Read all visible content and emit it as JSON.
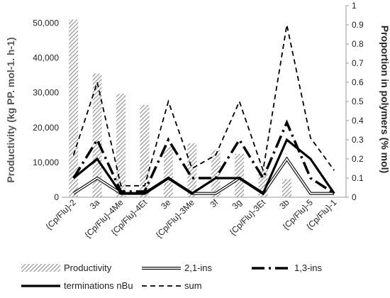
{
  "chart_data": {
    "type": "bar",
    "categories": [
      "{Cp/Flu}-2",
      "3a",
      "{Cp/Flu}-4Me",
      "{Cp/Flu}-4Et",
      "3e",
      "{Cp/Flu}-3Me",
      "3f",
      "3g",
      "{Cp/Flu}-3Et",
      "3b",
      "{Cp/Flu}-5",
      "{Cp/Flu}-1"
    ],
    "y_left": {
      "label": "Productivity (kg PP. mol-1. h-1)",
      "ylim": [
        0,
        55000
      ],
      "ticks": [
        "0",
        "10,000",
        "20,000",
        "30,000",
        "40,000",
        "50,000"
      ]
    },
    "y_right": {
      "label": "Proportion in polymers (% mol)",
      "ylim": [
        0,
        1
      ],
      "ticks": [
        "0",
        "0.1",
        "0.2",
        "0.3",
        "0.4",
        "0.5",
        "0.6",
        "0.7",
        "0.8",
        "0.9",
        "1"
      ]
    },
    "series": [
      {
        "name": "Productivity",
        "kind": "bar",
        "axis": "left",
        "values": [
          51000,
          35500,
          29700,
          26500,
          14500,
          15500,
          13500,
          12500,
          8000,
          5200,
          0,
          0
        ]
      },
      {
        "name": "2,1-ins",
        "kind": "line",
        "axis": "right",
        "values": [
          0.02,
          0.1,
          0.02,
          0.02,
          0.1,
          0.02,
          0.02,
          0.1,
          0.02,
          0.2,
          0.02,
          0.02
        ]
      },
      {
        "name": "1,3-ins",
        "kind": "line",
        "axis": "right",
        "values": [
          0.1,
          0.3,
          0.03,
          0.03,
          0.3,
          0.1,
          0.1,
          0.3,
          0.1,
          0.39,
          0.1,
          0.02
        ]
      },
      {
        "name": "terminations nBu",
        "kind": "line",
        "axis": "right",
        "values": [
          0.1,
          0.2,
          0.02,
          0.02,
          0.1,
          0.02,
          0.1,
          0.1,
          0.02,
          0.3,
          0.2,
          0.02
        ]
      },
      {
        "name": "sum",
        "kind": "line",
        "axis": "right",
        "values": [
          0.22,
          0.6,
          0.06,
          0.06,
          0.5,
          0.15,
          0.22,
          0.5,
          0.14,
          0.9,
          0.31,
          0.14
        ]
      }
    ],
    "legend_position": "bottom",
    "colors": {
      "bar_hatch": "#9a9a9a",
      "line": "#000000",
      "axis": "#999999",
      "text": "#222222",
      "label_text": "#555555"
    }
  }
}
